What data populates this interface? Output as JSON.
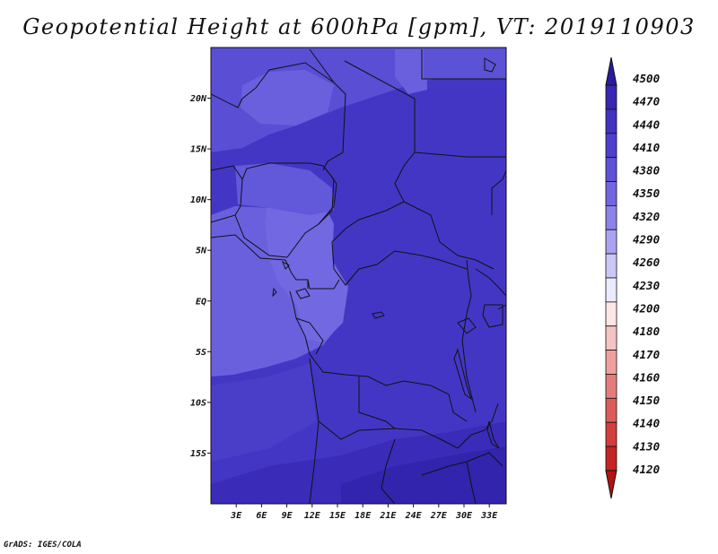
{
  "title": "Geopotential Height at 600hPa [gpm], VT: 2019110903",
  "credit": "GrADS: IGES/COLA",
  "map": {
    "lon_range": [
      0,
      35
    ],
    "lat_range": [
      -20,
      25
    ],
    "lat_labels": [
      "20N",
      "15N",
      "10N",
      "5N",
      "EQ",
      "5S",
      "10S",
      "15S"
    ],
    "lat_values": [
      20,
      15,
      10,
      5,
      0,
      -5,
      -10,
      -15
    ],
    "lon_labels": [
      "3E",
      "6E",
      "9E",
      "12E",
      "15E",
      "18E",
      "21E",
      "24E",
      "27E",
      "30E",
      "33E"
    ],
    "lon_values": [
      3,
      6,
      9,
      12,
      15,
      18,
      21,
      24,
      27,
      30,
      33
    ]
  },
  "colorbar": {
    "labels": [
      "4500",
      "4470",
      "4440",
      "4410",
      "4380",
      "4350",
      "4320",
      "4290",
      "4260",
      "4230",
      "4200",
      "4180",
      "4170",
      "4160",
      "4150",
      "4140",
      "4130",
      "4120"
    ],
    "colors": [
      "#2a1a9e",
      "#3626b0",
      "#4233c0",
      "#4e40cc",
      "#5e52d8",
      "#7266e0",
      "#8c83e8",
      "#aaa4f0",
      "#ccc8f6",
      "#ecebfd",
      "#fde6e6",
      "#f6c3c3",
      "#eea0a0",
      "#e57c7c",
      "#dc5c5c",
      "#d23e3e",
      "#c42626",
      "#b01414"
    ]
  }
}
